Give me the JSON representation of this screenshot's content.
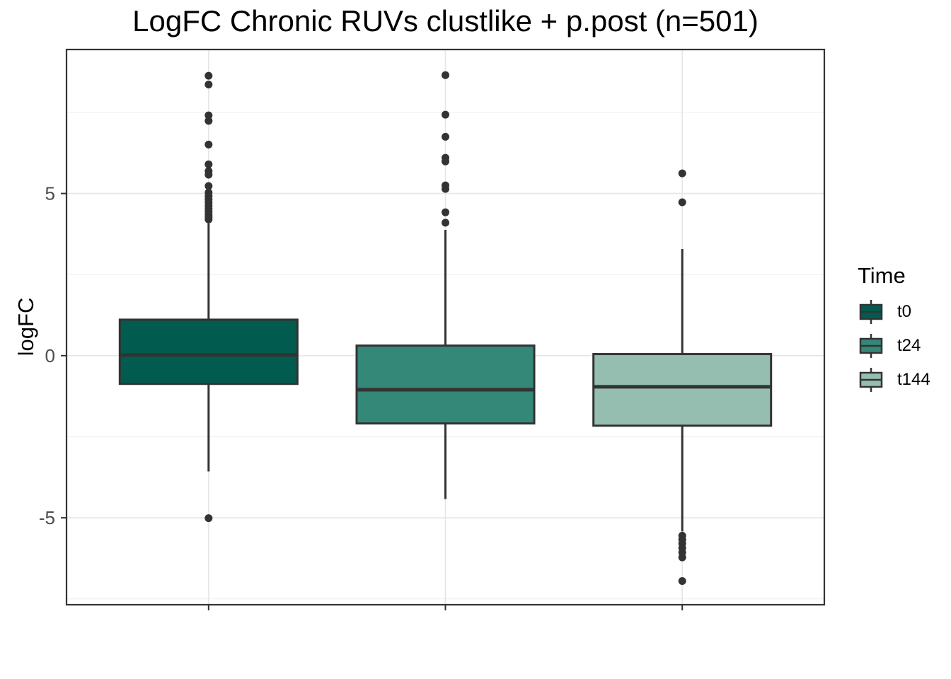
{
  "chart_data": {
    "type": "boxplot",
    "title": "LogFC Chronic RUVs clustlike + p.post (n=501)",
    "ylabel": "logFC",
    "xlabel": "",
    "grid": true,
    "panel_background": "#ffffff",
    "panel_border_color": "#333333",
    "gridline_major_color": "#e7e7e7",
    "gridline_minor_color": "#f0f0f0",
    "line_color": "#333333",
    "tick_label_color": "#4d4d4d",
    "y_axis": {
      "range": [
        -7.68,
        9.44
      ],
      "ticks": [
        {
          "value": 5,
          "label": "5"
        },
        {
          "value": 0,
          "label": "0"
        },
        {
          "value": -5,
          "label": "-5"
        }
      ],
      "minor_ticks": [
        7.5,
        2.5,
        -2.5,
        -7.5
      ]
    },
    "x_axis": {
      "tick_labels_visible": false
    },
    "legend": {
      "title": "Time",
      "position": "right"
    },
    "series": [
      {
        "name": "t0",
        "color": "#015c4f",
        "stats": {
          "lower_whisker": -3.57,
          "q1": -0.87,
          "median": 0.02,
          "q3": 1.11,
          "upper_whisker": 4.08
        },
        "outliers_high": [
          8.63,
          8.36,
          7.41,
          7.24,
          6.51,
          5.9,
          5.69,
          5.58,
          5.23,
          5.03,
          4.92,
          4.82,
          4.72,
          4.62,
          4.53,
          4.44,
          4.35,
          4.27,
          4.2
        ],
        "outliers_low": [
          -5.01
        ]
      },
      {
        "name": "t24",
        "color": "#348878",
        "stats": {
          "lower_whisker": -4.42,
          "q1": -2.09,
          "median": -1.05,
          "q3": 0.31,
          "upper_whisker": 3.88
        },
        "outliers_high": [
          8.65,
          7.43,
          6.75,
          6.1,
          5.99,
          5.25,
          5.14,
          4.42,
          4.1
        ],
        "outliers_low": []
      },
      {
        "name": "t144",
        "color": "#95beb1",
        "stats": {
          "lower_whisker": -5.42,
          "q1": -2.16,
          "median": -0.96,
          "q3": 0.05,
          "upper_whisker": 3.29
        },
        "outliers_high": [
          5.62,
          4.73
        ],
        "outliers_low": [
          -5.55,
          -5.67,
          -5.79,
          -5.93,
          -6.07,
          -6.22,
          -6.95
        ]
      }
    ]
  }
}
